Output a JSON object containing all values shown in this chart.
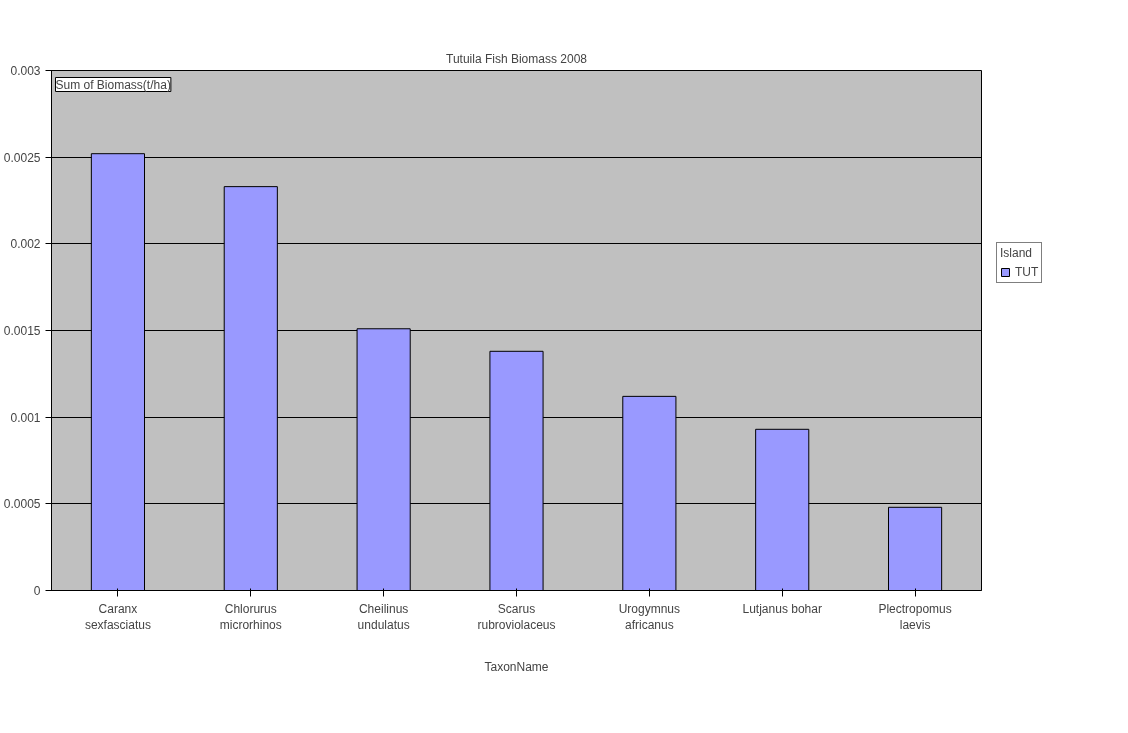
{
  "chart_data": {
    "type": "bar",
    "title": "Tutuila Fish Biomass 2008",
    "ylabel": "Sum of Biomass(t/ha)",
    "xlabel": "TaxonName",
    "legend_title": "Island",
    "categories": [
      "Caranx\nsexfasciatus",
      "Chlorurus\nmicrorhinos",
      "Cheilinus\nundulatus",
      "Scarus\nrubroviolaceus",
      "Urogymnus\nafricanus",
      "Lutjanus bohar",
      "Plectropomus\nlaevis"
    ],
    "series": [
      {
        "name": "TUT",
        "color": "#9999ff",
        "values": [
          0.00252,
          0.00233,
          0.00151,
          0.00138,
          0.00112,
          0.00093,
          0.00048
        ]
      }
    ],
    "ylim": [
      0,
      0.003
    ],
    "yticks": [
      0,
      0.0005,
      0.001,
      0.0015,
      0.002,
      0.0025,
      0.003
    ],
    "grid": "y",
    "legend": "right"
  }
}
